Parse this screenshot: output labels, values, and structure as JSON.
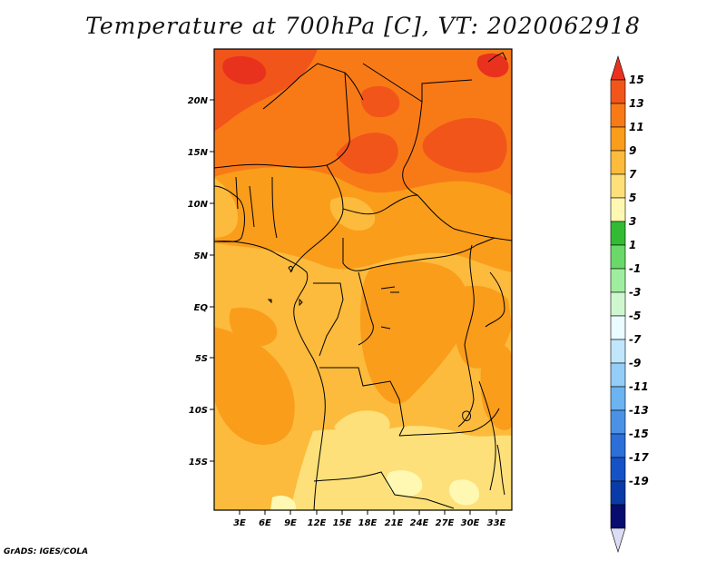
{
  "title": "Temperature at 700hPa [C], VT: 2020062918",
  "credit": "GrADS: IGES/COLA",
  "map": {
    "lat_labels": [
      "20N",
      "15N",
      "10N",
      "5N",
      "EQ",
      "5S",
      "10S",
      "15S"
    ],
    "lon_labels": [
      "3E",
      "6E",
      "9E",
      "12E",
      "15E",
      "18E",
      "21E",
      "24E",
      "27E",
      "30E",
      "33E"
    ]
  },
  "colorbar": {
    "labels": [
      "15",
      "13",
      "11",
      "9",
      "7",
      "5",
      "3",
      "1",
      "-1",
      "-3",
      "-5",
      "-7",
      "-9",
      "-11",
      "-13",
      "-15",
      "-17",
      "-19"
    ],
    "colors": [
      "#e9321d",
      "#f2551a",
      "#f87a17",
      "#fa9d1b",
      "#fcbb3c",
      "#fde07a",
      "#fef8b2",
      "#33bb33",
      "#6ad96a",
      "#9fee9f",
      "#cff7cf",
      "#eafcff",
      "#bfe6fb",
      "#94cdf7",
      "#6cb3f1",
      "#4b92e6",
      "#2c6fd9",
      "#1552c6",
      "#093ba8",
      "#070c6f",
      "#dcdcf5"
    ]
  }
}
